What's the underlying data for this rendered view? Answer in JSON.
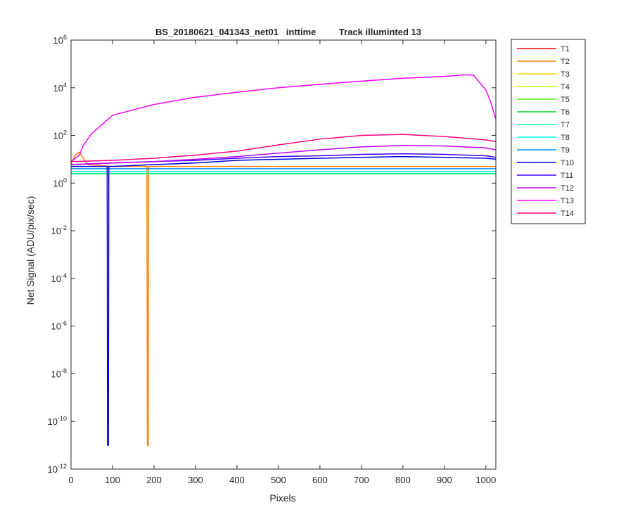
{
  "chart_data": {
    "type": "line",
    "title": "BS_20180621_041343_net01   inttime         Track illuminted 13",
    "xlabel": "Pixels",
    "ylabel": "Net Signal (ADU/pix/sec)",
    "xlim": [
      0,
      1024
    ],
    "ylim": [
      1e-12,
      1000000.0
    ],
    "yscale": "log",
    "grid": false,
    "legend_position": "outside-right",
    "x_ticks": [
      {
        "value": 0,
        "label": "0"
      },
      {
        "value": 100,
        "label": "100"
      },
      {
        "value": 200,
        "label": "200"
      },
      {
        "value": 300,
        "label": "300"
      },
      {
        "value": 400,
        "label": "400"
      },
      {
        "value": 500,
        "label": "500"
      },
      {
        "value": 600,
        "label": "600"
      },
      {
        "value": 700,
        "label": "700"
      },
      {
        "value": 800,
        "label": "800"
      },
      {
        "value": 900,
        "label": "900"
      },
      {
        "value": 1000,
        "label": "1000"
      }
    ],
    "y_ticks": [
      {
        "exp": 6,
        "base": "10",
        "sup": "6"
      },
      {
        "exp": 4,
        "base": "10",
        "sup": "4"
      },
      {
        "exp": 2,
        "base": "10",
        "sup": "2"
      },
      {
        "exp": 0,
        "base": "10",
        "sup": "0"
      },
      {
        "exp": -2,
        "base": "10",
        "sup": "-2"
      },
      {
        "exp": -4,
        "base": "10",
        "sup": "-4"
      },
      {
        "exp": -6,
        "base": "10",
        "sup": "-6"
      },
      {
        "exp": -8,
        "base": "10",
        "sup": "-8"
      },
      {
        "exp": -10,
        "base": "10",
        "sup": "-10"
      },
      {
        "exp": -12,
        "base": "10",
        "sup": "-12"
      }
    ],
    "series": [
      {
        "name": "T1",
        "color": "#ff0000",
        "x": [
          0,
          100,
          200,
          300,
          400,
          500,
          600,
          700,
          800,
          900,
          1000,
          1024
        ],
        "y": [
          3,
          3,
          3,
          3,
          3,
          3,
          3,
          3,
          3,
          3,
          3,
          3
        ]
      },
      {
        "name": "T2",
        "color": "#ff7f00",
        "x": [
          0,
          10,
          20,
          40,
          100,
          183,
          184,
          185,
          186,
          187,
          200,
          300,
          400,
          500,
          600,
          700,
          800,
          900,
          1000,
          1024
        ],
        "y": [
          6,
          15,
          20,
          6,
          5,
          5,
          1e-11,
          1e-11,
          1e-11,
          5,
          5,
          5,
          5,
          5,
          5,
          5,
          5,
          5,
          5,
          5
        ]
      },
      {
        "name": "T3",
        "color": "#ffd700",
        "x": [
          0,
          100,
          200,
          300,
          400,
          500,
          600,
          700,
          800,
          900,
          1000,
          1024
        ],
        "y": [
          2.5,
          2.5,
          2.5,
          2.5,
          2.5,
          2.5,
          2.5,
          2.5,
          2.5,
          2.5,
          2.5,
          2.5
        ]
      },
      {
        "name": "T4",
        "color": "#bfff00",
        "x": [
          0,
          100,
          200,
          300,
          400,
          500,
          600,
          700,
          800,
          900,
          1000,
          1024
        ],
        "y": [
          2.5,
          2.5,
          2.5,
          2.5,
          2.5,
          2.5,
          2.5,
          2.5,
          2.5,
          2.5,
          2.5,
          2.5
        ]
      },
      {
        "name": "T5",
        "color": "#55ff00",
        "x": [
          0,
          100,
          200,
          300,
          400,
          500,
          600,
          700,
          800,
          900,
          1000,
          1024
        ],
        "y": [
          2.5,
          2.5,
          2.5,
          2.5,
          2.5,
          2.5,
          2.5,
          2.5,
          2.5,
          2.5,
          2.5,
          2.5
        ]
      },
      {
        "name": "T6",
        "color": "#00d42a",
        "x": [
          0,
          100,
          200,
          300,
          400,
          500,
          600,
          700,
          800,
          900,
          1000,
          1024
        ],
        "y": [
          2.5,
          2.5,
          2.5,
          2.5,
          2.5,
          2.5,
          2.5,
          2.5,
          2.5,
          2.5,
          2.5,
          2.5
        ]
      },
      {
        "name": "T7",
        "color": "#00ffaa",
        "x": [
          0,
          100,
          200,
          300,
          400,
          500,
          600,
          700,
          800,
          900,
          1000,
          1024
        ],
        "y": [
          2.5,
          2.5,
          2.5,
          2.5,
          2.5,
          2.5,
          2.5,
          2.5,
          2.5,
          2.5,
          2.5,
          2.5
        ]
      },
      {
        "name": "T8",
        "color": "#00ffff",
        "x": [
          0,
          100,
          200,
          300,
          400,
          500,
          600,
          700,
          800,
          900,
          1000,
          1024
        ],
        "y": [
          3,
          3,
          3,
          3,
          3,
          3,
          3,
          3,
          3,
          3,
          3,
          3
        ]
      },
      {
        "name": "T9",
        "color": "#0090ff",
        "x": [
          0,
          100,
          200,
          300,
          400,
          500,
          600,
          700,
          800,
          900,
          1000,
          1024
        ],
        "y": [
          4,
          4,
          4,
          4,
          4,
          4,
          4,
          4,
          4,
          4,
          4,
          4
        ]
      },
      {
        "name": "T10",
        "color": "#0000e0",
        "x": [
          0,
          50,
          87,
          88,
          89,
          90,
          91,
          100,
          200,
          300,
          400,
          500,
          600,
          700,
          800,
          900,
          1000,
          1024
        ],
        "y": [
          5,
          5,
          5,
          1e-11,
          1e-11,
          1e-11,
          5,
          5,
          6,
          7,
          9,
          10,
          11,
          12,
          13,
          12,
          11,
          10
        ]
      },
      {
        "name": "T11",
        "color": "#4000ff",
        "x": [
          0,
          100,
          200,
          300,
          400,
          500,
          600,
          700,
          800,
          900,
          1000,
          1024
        ],
        "y": [
          6,
          7,
          8,
          9,
          11,
          13,
          14,
          16,
          17,
          16,
          14,
          12
        ]
      },
      {
        "name": "T12",
        "color": "#c000ff",
        "x": [
          0,
          100,
          200,
          300,
          400,
          500,
          600,
          700,
          800,
          900,
          1000,
          1024
        ],
        "y": [
          6,
          7,
          8,
          10,
          13,
          18,
          25,
          33,
          38,
          36,
          30,
          25
        ]
      },
      {
        "name": "T13",
        "color": "#ff00ff",
        "x": [
          0,
          20,
          30,
          50,
          100,
          200,
          300,
          400,
          500,
          600,
          700,
          800,
          900,
          950,
          970,
          1000,
          1010,
          1024
        ],
        "y": [
          8,
          15,
          40,
          120,
          700,
          2000,
          4000,
          6500,
          10000,
          14000,
          19000,
          25000,
          30000,
          35000,
          34000,
          8000,
          3000,
          500
        ]
      },
      {
        "name": "T14",
        "color": "#ff007f",
        "x": [
          0,
          100,
          200,
          300,
          400,
          500,
          600,
          700,
          800,
          900,
          1000,
          1024
        ],
        "y": [
          8,
          9,
          11,
          15,
          22,
          40,
          70,
          100,
          110,
          90,
          65,
          55
        ]
      }
    ]
  }
}
